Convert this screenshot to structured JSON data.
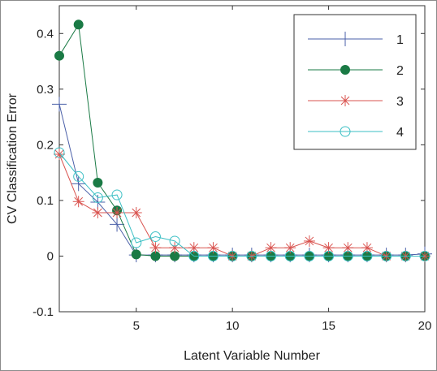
{
  "chart_data": {
    "type": "line",
    "title": "",
    "xlabel": "Latent Variable Number",
    "ylabel": "CV Classification Error",
    "xlim": [
      1,
      20
    ],
    "ylim": [
      -0.1,
      0.45
    ],
    "x_ticks": [
      5,
      10,
      15,
      20
    ],
    "y_ticks": [
      -0.1,
      0,
      0.1,
      0.2,
      0.3,
      0.4
    ],
    "y_tick_labels": [
      "-0.1",
      "0",
      "0.1",
      "0.2",
      "0.3",
      "0.4"
    ],
    "grid": false,
    "legend_position": "top-right",
    "x": [
      1,
      2,
      3,
      4,
      5,
      6,
      7,
      8,
      9,
      10,
      11,
      12,
      13,
      14,
      15,
      16,
      17,
      18,
      19,
      20
    ],
    "series": [
      {
        "name": "1",
        "color": "#4a5fa8",
        "marker": "plus",
        "values": [
          0.273,
          0.13,
          0.097,
          0.057,
          0.002,
          0.002,
          0.002,
          0.002,
          0.002,
          0.002,
          0.002,
          0.002,
          0.002,
          0.002,
          0.002,
          0.002,
          0.002,
          0.002,
          0.002,
          0.004
        ]
      },
      {
        "name": "2",
        "color": "#1a7a45",
        "marker": "filled-circle",
        "values": [
          0.36,
          0.416,
          0.132,
          0.082,
          0.003,
          0.0,
          0.0,
          0.0,
          0.0,
          0.0,
          0.0,
          0.0,
          0.0,
          0.0,
          0.0,
          0.0,
          0.0,
          0.0,
          0.0,
          0.0
        ]
      },
      {
        "name": "3",
        "color": "#d9534f",
        "marker": "asterisk",
        "values": [
          0.183,
          0.098,
          0.078,
          0.078,
          0.078,
          0.015,
          0.015,
          0.015,
          0.015,
          0.0,
          0.0,
          0.015,
          0.015,
          0.027,
          0.015,
          0.015,
          0.015,
          0.0,
          0.0,
          0.0
        ]
      },
      {
        "name": "4",
        "color": "#3bbfc4",
        "marker": "open-circle",
        "values": [
          0.186,
          0.143,
          0.105,
          0.11,
          0.024,
          0.035,
          0.027,
          0.0,
          0.0,
          0.0,
          0.0,
          0.0,
          0.0,
          0.0,
          0.0,
          0.0,
          0.0,
          0.0,
          0.0,
          0.0
        ]
      }
    ]
  }
}
